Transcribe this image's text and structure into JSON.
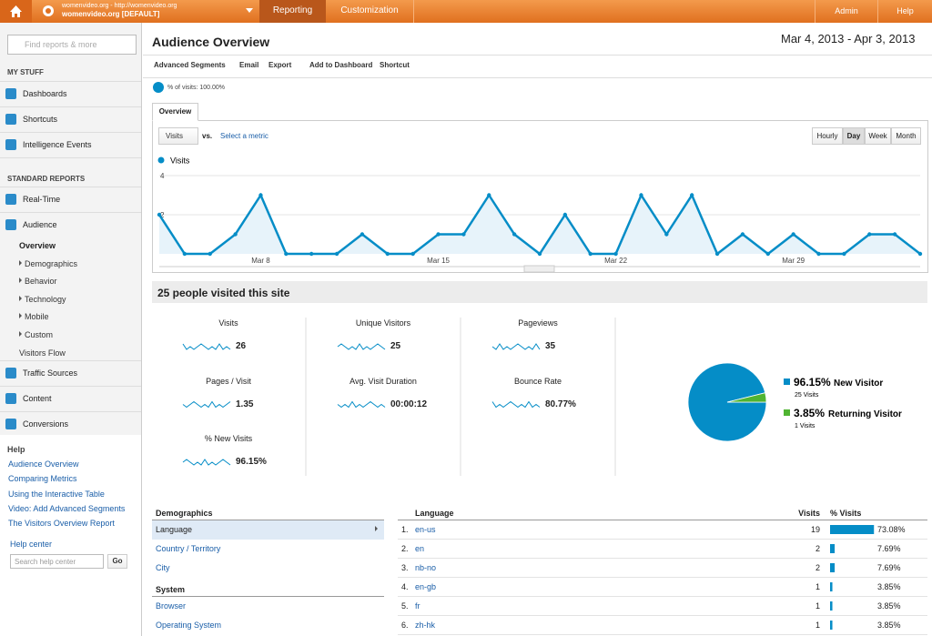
{
  "topbar": {
    "account_url": "womenvideo.org - http://womenvideo.org",
    "account_name": "womenvideo.org [DEFAULT]",
    "tabs": [
      "Reporting",
      "Customization"
    ],
    "admin": "Admin",
    "help": "Help"
  },
  "sidebar": {
    "search_placeholder": "Find reports & more",
    "my_stuff": "MY STUFF",
    "my_stuff_items": [
      "Dashboards",
      "Shortcuts",
      "Intelligence Events"
    ],
    "standard_reports": "STANDARD REPORTS",
    "reports_top": [
      "Real-Time",
      "Audience"
    ],
    "audience_sub": [
      "Overview",
      "Demographics",
      "Behavior",
      "Technology",
      "Mobile",
      "Custom",
      "Visitors Flow"
    ],
    "reports_bottom": [
      "Traffic Sources",
      "Content",
      "Conversions"
    ],
    "help": {
      "title": "Help",
      "links": [
        "Audience Overview",
        "Comparing Metrics",
        "Using the Interactive Table",
        "Video: Add Advanced Segments",
        "The Visitors Overview Report"
      ],
      "help_center": "Help center",
      "search_placeholder": "Search help center",
      "go": "Go"
    }
  },
  "header": {
    "title": "Audience Overview",
    "date_range": "Mar 4, 2013 - Apr 3, 2013",
    "toolbar": [
      "Advanced Segments",
      "Email",
      "Export",
      "Add to Dashboard",
      "Shortcut"
    ],
    "segment": "% of visits: 100.00%",
    "tab": "Overview",
    "metric": "Visits",
    "vs": "vs.",
    "select_metric": "Select a metric",
    "granularity": [
      "Hourly",
      "Day",
      "Week",
      "Month"
    ]
  },
  "chart_data": [
    {
      "type": "line",
      "categories": [
        null,
        null,
        null,
        null,
        "Mar 8",
        null,
        null,
        null,
        null,
        null,
        null,
        "Mar 15",
        null,
        null,
        null,
        null,
        null,
        null,
        "Mar 22",
        null,
        null,
        null,
        null,
        null,
        null,
        "Mar 29",
        null,
        null,
        null,
        null,
        null
      ],
      "series": [
        {
          "name": "Visits",
          "color": "#058dc7",
          "values": [
            2,
            0,
            0,
            1,
            3,
            0,
            0,
            0,
            1,
            0,
            0,
            1,
            1,
            3,
            1,
            0,
            2,
            0,
            0,
            3,
            1,
            3,
            0,
            1,
            0,
            1,
            0,
            0,
            1,
            1,
            0
          ]
        }
      ],
      "ylim": [
        0,
        4
      ],
      "yticks": [
        2,
        4
      ],
      "grid": true
    },
    {
      "type": "pie",
      "categories": [
        "New Visitor",
        "Returning Visitor"
      ],
      "values": [
        96.15,
        3.85
      ],
      "value_labels": [
        "96.15%",
        "3.85%"
      ],
      "sublabels": [
        "25 Visits",
        "1 Visits"
      ],
      "colors": [
        "#058dc7",
        "#50b432"
      ]
    }
  ],
  "summary": {
    "title": "25 people visited this site",
    "metrics": [
      {
        "label": "Visits",
        "value": "26"
      },
      {
        "label": "Unique Visitors",
        "value": "25"
      },
      {
        "label": "Pageviews",
        "value": "35"
      },
      {
        "label": "Pages / Visit",
        "value": "1.35"
      },
      {
        "label": "Avg. Visit Duration",
        "value": "00:00:12"
      },
      {
        "label": "Bounce Rate",
        "value": "80.77%"
      },
      {
        "label": "% New Visits",
        "value": "96.15%"
      }
    ]
  },
  "demographics": {
    "title": "Demographics",
    "items": [
      "Language",
      "Country / Territory",
      "City"
    ],
    "system_title": "System",
    "system_items": [
      "Browser",
      "Operating System"
    ]
  },
  "table": {
    "headers": [
      "Language",
      "Visits",
      "% Visits"
    ],
    "rows": [
      {
        "rank": "1.",
        "language": "en-us",
        "visits": 19,
        "pct": 73.08,
        "pct_label": "73.08%"
      },
      {
        "rank": "2.",
        "language": "en",
        "visits": 2,
        "pct": 7.69,
        "pct_label": "7.69%"
      },
      {
        "rank": "3.",
        "language": "nb-no",
        "visits": 2,
        "pct": 7.69,
        "pct_label": "7.69%"
      },
      {
        "rank": "4.",
        "language": "en-gb",
        "visits": 1,
        "pct": 3.85,
        "pct_label": "3.85%"
      },
      {
        "rank": "5.",
        "language": "fr",
        "visits": 1,
        "pct": 3.85,
        "pct_label": "3.85%"
      },
      {
        "rank": "6.",
        "language": "zh-hk",
        "visits": 1,
        "pct": 3.85,
        "pct_label": "3.85%"
      }
    ]
  }
}
